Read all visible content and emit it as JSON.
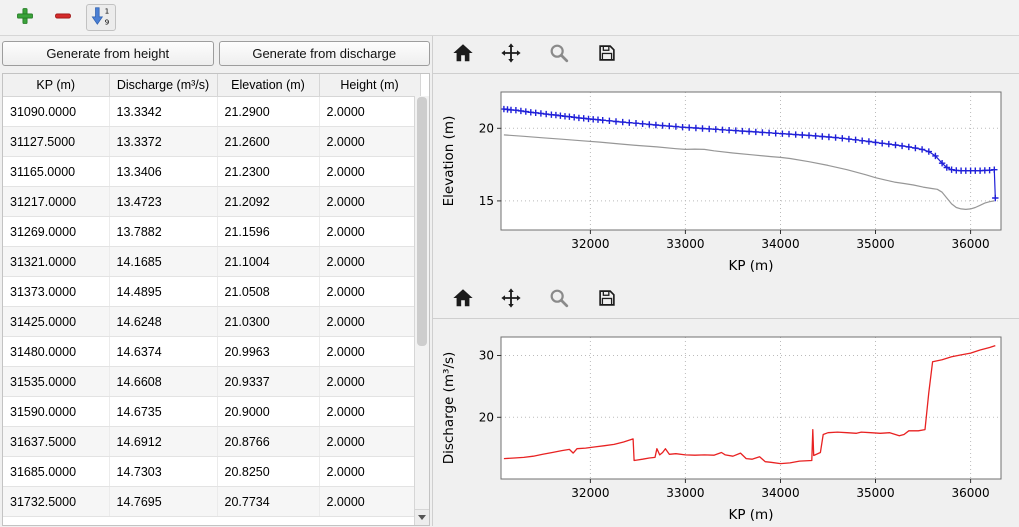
{
  "top_toolbar": {
    "icons": [
      {
        "name": "add-row-icon",
        "color": "#3aa33a"
      },
      {
        "name": "remove-row-icon",
        "color": "#d42a2a"
      },
      {
        "name": "sort-ascending-icon",
        "color": "#4a7fd4",
        "top_label": "1",
        "bottom_label": "9"
      }
    ]
  },
  "left_panel": {
    "buttons": [
      {
        "label": "Generate from height"
      },
      {
        "label": "Generate from discharge"
      }
    ],
    "table": {
      "columns": [
        "KP (m)",
        "Discharge (m³/s)",
        "Elevation (m)",
        "Height (m)"
      ],
      "rows": [
        [
          "31090.0000",
          "13.3342",
          "21.2900",
          "2.0000"
        ],
        [
          "31127.5000",
          "13.3372",
          "21.2600",
          "2.0000"
        ],
        [
          "31165.0000",
          "13.3406",
          "21.2300",
          "2.0000"
        ],
        [
          "31217.0000",
          "13.4723",
          "21.2092",
          "2.0000"
        ],
        [
          "31269.0000",
          "13.7882",
          "21.1596",
          "2.0000"
        ],
        [
          "31321.0000",
          "14.1685",
          "21.1004",
          "2.0000"
        ],
        [
          "31373.0000",
          "14.4895",
          "21.0508",
          "2.0000"
        ],
        [
          "31425.0000",
          "14.6248",
          "21.0300",
          "2.0000"
        ],
        [
          "31480.0000",
          "14.6374",
          "20.9963",
          "2.0000"
        ],
        [
          "31535.0000",
          "14.6608",
          "20.9337",
          "2.0000"
        ],
        [
          "31590.0000",
          "14.6735",
          "20.9000",
          "2.0000"
        ],
        [
          "31637.5000",
          "14.6912",
          "20.8766",
          "2.0000"
        ],
        [
          "31685.0000",
          "14.7303",
          "20.8250",
          "2.0000"
        ],
        [
          "31732.5000",
          "14.7695",
          "20.7734",
          "2.0000"
        ]
      ]
    }
  },
  "chart_toolbar_icons": [
    "home-icon",
    "pan-icon",
    "zoom-icon",
    "save-icon"
  ],
  "chart_data": [
    {
      "type": "line",
      "title": "",
      "xlabel": "KP (m)",
      "ylabel": "Elevation (m)",
      "xlim": [
        31060,
        36320
      ],
      "ylim": [
        13,
        22.5
      ],
      "xticks": [
        32000,
        33000,
        34000,
        35000,
        36000
      ],
      "yticks": [
        15,
        20
      ],
      "grid": true,
      "legend": "none",
      "series": [
        {
          "name": "water-elevation",
          "color": "#2020d8",
          "marker": "+",
          "width": 1.2,
          "points": [
            [
              31090,
              21.32
            ],
            [
              31128,
              21.3
            ],
            [
              31165,
              21.27
            ],
            [
              31217,
              21.25
            ],
            [
              31269,
              21.2
            ],
            [
              31321,
              21.15
            ],
            [
              31373,
              21.1
            ],
            [
              31425,
              21.07
            ],
            [
              31480,
              21.03
            ],
            [
              31535,
              20.98
            ],
            [
              31590,
              20.94
            ],
            [
              31638,
              20.91
            ],
            [
              31685,
              20.87
            ],
            [
              31733,
              20.83
            ],
            [
              31780,
              20.8
            ],
            [
              31830,
              20.76
            ],
            [
              31880,
              20.72
            ],
            [
              31930,
              20.69
            ],
            [
              31980,
              20.65
            ],
            [
              32030,
              20.62
            ],
            [
              32080,
              20.59
            ],
            [
              32130,
              20.56
            ],
            [
              32200,
              20.52
            ],
            [
              32270,
              20.47
            ],
            [
              32340,
              20.43
            ],
            [
              32410,
              20.39
            ],
            [
              32480,
              20.35
            ],
            [
              32550,
              20.31
            ],
            [
              32620,
              20.27
            ],
            [
              32690,
              20.23
            ],
            [
              32760,
              20.19
            ],
            [
              32830,
              20.15
            ],
            [
              32900,
              20.12
            ],
            [
              32970,
              20.08
            ],
            [
              33040,
              20.05
            ],
            [
              33110,
              20.02
            ],
            [
              33180,
              19.99
            ],
            [
              33250,
              19.96
            ],
            [
              33320,
              19.93
            ],
            [
              33390,
              19.9
            ],
            [
              33460,
              19.87
            ],
            [
              33530,
              19.84
            ],
            [
              33600,
              19.81
            ],
            [
              33670,
              19.78
            ],
            [
              33740,
              19.75
            ],
            [
              33810,
              19.72
            ],
            [
              33880,
              19.69
            ],
            [
              33950,
              19.66
            ],
            [
              34020,
              19.63
            ],
            [
              34090,
              19.6
            ],
            [
              34160,
              19.57
            ],
            [
              34230,
              19.54
            ],
            [
              34300,
              19.51
            ],
            [
              34370,
              19.48
            ],
            [
              34440,
              19.44
            ],
            [
              34510,
              19.4
            ],
            [
              34580,
              19.36
            ],
            [
              34650,
              19.31
            ],
            [
              34720,
              19.26
            ],
            [
              34790,
              19.21
            ],
            [
              34860,
              19.15
            ],
            [
              34930,
              19.09
            ],
            [
              35000,
              19.03
            ],
            [
              35070,
              18.97
            ],
            [
              35140,
              18.91
            ],
            [
              35210,
              18.85
            ],
            [
              35280,
              18.79
            ],
            [
              35350,
              18.72
            ],
            [
              35420,
              18.64
            ],
            [
              35490,
              18.55
            ],
            [
              35560,
              18.4
            ],
            [
              35630,
              18.1
            ],
            [
              35700,
              17.6
            ],
            [
              35750,
              17.3
            ],
            [
              35800,
              17.15
            ],
            [
              35850,
              17.1
            ],
            [
              35900,
              17.08
            ],
            [
              35950,
              17.08
            ],
            [
              36000,
              17.08
            ],
            [
              36050,
              17.08
            ],
            [
              36100,
              17.08
            ],
            [
              36150,
              17.1
            ],
            [
              36200,
              17.12
            ],
            [
              36250,
              17.15
            ],
            [
              36260,
              15.2
            ]
          ]
        },
        {
          "name": "bed-elevation",
          "color": "#979797",
          "marker": null,
          "width": 1.2,
          "points": [
            [
              31090,
              19.55
            ],
            [
              31300,
              19.45
            ],
            [
              31500,
              19.35
            ],
            [
              31700,
              19.25
            ],
            [
              31900,
              19.15
            ],
            [
              32100,
              19.05
            ],
            [
              32300,
              18.93
            ],
            [
              32500,
              18.82
            ],
            [
              32700,
              18.72
            ],
            [
              32900,
              18.6
            ],
            [
              33000,
              18.55
            ],
            [
              33100,
              18.57
            ],
            [
              33200,
              18.55
            ],
            [
              33300,
              18.45
            ],
            [
              33500,
              18.3
            ],
            [
              33700,
              18.18
            ],
            [
              33900,
              18.05
            ],
            [
              34000,
              18.0
            ],
            [
              34100,
              17.92
            ],
            [
              34300,
              17.7
            ],
            [
              34500,
              17.45
            ],
            [
              34700,
              17.15
            ],
            [
              34900,
              16.8
            ],
            [
              35000,
              16.6
            ],
            [
              35100,
              16.45
            ],
            [
              35200,
              16.3
            ],
            [
              35300,
              16.2
            ],
            [
              35400,
              16.1
            ],
            [
              35500,
              15.95
            ],
            [
              35600,
              15.85
            ],
            [
              35650,
              15.8
            ],
            [
              35700,
              15.6
            ],
            [
              35750,
              15.2
            ],
            [
              35800,
              14.8
            ],
            [
              35850,
              14.55
            ],
            [
              35900,
              14.45
            ],
            [
              35950,
              14.42
            ],
            [
              36000,
              14.45
            ],
            [
              36050,
              14.55
            ],
            [
              36100,
              14.7
            ],
            [
              36150,
              14.85
            ],
            [
              36200,
              14.95
            ],
            [
              36250,
              15.0
            ]
          ]
        }
      ]
    },
    {
      "type": "line",
      "title": "",
      "xlabel": "KP (m)",
      "ylabel": "Discharge (m³/s)",
      "xlim": [
        31060,
        36320
      ],
      "ylim": [
        10,
        33
      ],
      "xticks": [
        32000,
        33000,
        34000,
        35000,
        36000
      ],
      "yticks": [
        20,
        30
      ],
      "grid": true,
      "legend": "none",
      "series": [
        {
          "name": "discharge",
          "color": "#e82222",
          "marker": null,
          "width": 1.3,
          "points": [
            [
              31090,
              13.3
            ],
            [
              31200,
              13.4
            ],
            [
              31300,
              13.5
            ],
            [
              31400,
              13.7
            ],
            [
              31500,
              14.0
            ],
            [
              31600,
              14.3
            ],
            [
              31700,
              14.6
            ],
            [
              31780,
              14.8
            ],
            [
              31820,
              14.2
            ],
            [
              31860,
              14.9
            ],
            [
              31950,
              15.0
            ],
            [
              32050,
              15.2
            ],
            [
              32150,
              15.4
            ],
            [
              32250,
              15.6
            ],
            [
              32350,
              16.0
            ],
            [
              32430,
              16.4
            ],
            [
              32450,
              16.5
            ],
            [
              32460,
              13.0
            ],
            [
              32550,
              13.2
            ],
            [
              32620,
              13.4
            ],
            [
              32680,
              13.5
            ],
            [
              32700,
              14.9
            ],
            [
              32730,
              13.9
            ],
            [
              32760,
              14.3
            ],
            [
              32790,
              14.9
            ],
            [
              32830,
              14.0
            ],
            [
              32900,
              14.1
            ],
            [
              33000,
              13.9
            ],
            [
              33100,
              13.85
            ],
            [
              33200,
              13.9
            ],
            [
              33300,
              13.85
            ],
            [
              33380,
              14.3
            ],
            [
              33420,
              13.9
            ],
            [
              33500,
              13.7
            ],
            [
              33580,
              14.2
            ],
            [
              33640,
              13.3
            ],
            [
              33700,
              13.2
            ],
            [
              33780,
              13.6
            ],
            [
              33840,
              12.8
            ],
            [
              33900,
              12.7
            ],
            [
              34000,
              12.5
            ],
            [
              34100,
              12.6
            ],
            [
              34200,
              12.9
            ],
            [
              34330,
              13.0
            ],
            [
              34340,
              18.0
            ],
            [
              34350,
              13.8
            ],
            [
              34420,
              14.3
            ],
            [
              34450,
              17.2
            ],
            [
              34500,
              17.5
            ],
            [
              34600,
              17.6
            ],
            [
              34700,
              17.5
            ],
            [
              34800,
              17.4
            ],
            [
              34850,
              17.6
            ],
            [
              34950,
              17.5
            ],
            [
              35050,
              17.4
            ],
            [
              35150,
              17.5
            ],
            [
              35250,
              17.0
            ],
            [
              35300,
              17.2
            ],
            [
              35350,
              17.8
            ],
            [
              35450,
              17.8
            ],
            [
              35520,
              18.0
            ],
            [
              35560,
              24.0
            ],
            [
              35600,
              29.0
            ],
            [
              35700,
              29.3
            ],
            [
              35800,
              29.8
            ],
            [
              35900,
              30.1
            ],
            [
              36000,
              30.4
            ],
            [
              36100,
              30.9
            ],
            [
              36200,
              31.3
            ],
            [
              36260,
              31.6
            ]
          ]
        }
      ]
    }
  ]
}
